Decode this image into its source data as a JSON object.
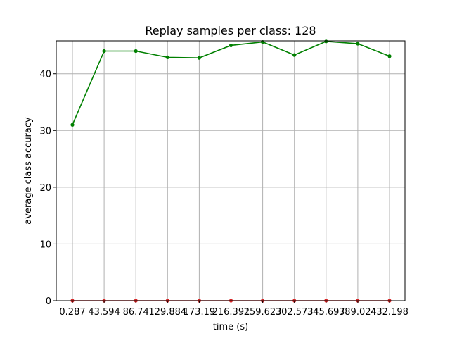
{
  "chart_data": {
    "type": "line",
    "title": "Replay samples per class: 128",
    "xlabel": "time (s)",
    "ylabel": "average class accuracy",
    "x_tick_labels": [
      "0.287",
      "43.594",
      "86.74",
      "129.884",
      "173.19",
      "216.391",
      "259.623",
      "302.573",
      "345.697",
      "389.024",
      "432.198"
    ],
    "y_ticks": [
      0,
      10,
      20,
      30,
      40
    ],
    "ylim": [
      0,
      45.8
    ],
    "grid": true,
    "series": [
      {
        "color": "#008000",
        "marker": "circle",
        "values": [
          31.0,
          44.0,
          44.0,
          42.9,
          42.8,
          45.0,
          45.6,
          43.3,
          45.7,
          45.3,
          43.1
        ]
      },
      {
        "color": "#d62728",
        "marker": "circle",
        "values": [
          0,
          0,
          0,
          0,
          0,
          0,
          0,
          0,
          0,
          0,
          0
        ]
      }
    ]
  }
}
